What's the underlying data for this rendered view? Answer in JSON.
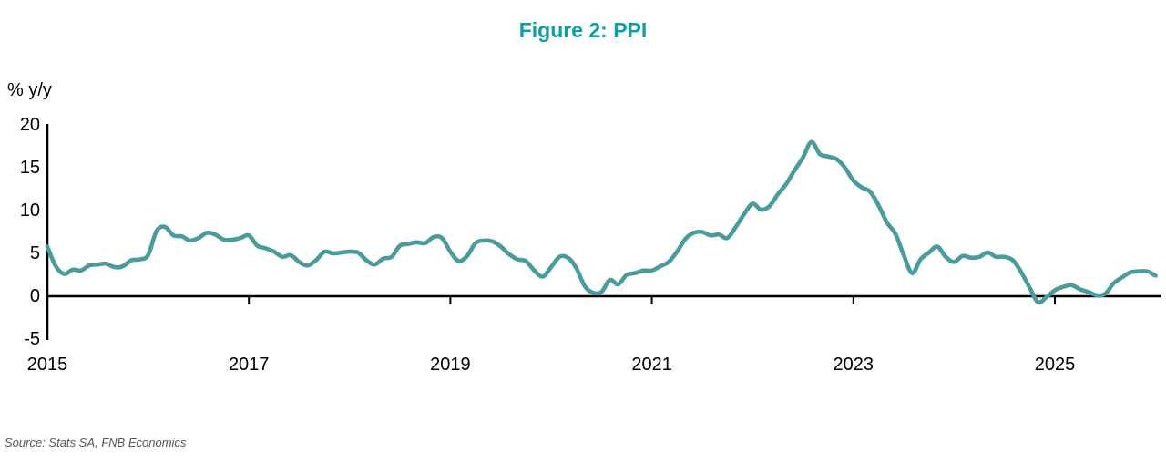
{
  "title": "Figure 2: PPI",
  "y_axis_unit": "% y/y",
  "source": "Source: Stats SA, FNB Economics",
  "colors": {
    "line": "#4a9b9c",
    "title": "#0b9fa7",
    "axis": "#000000",
    "source_text": "#575757"
  },
  "chart_data": {
    "type": "line",
    "title": "Figure 2: PPI",
    "ylabel": "% y/y",
    "series_name": "PPI % y/y",
    "frequency": "monthly",
    "start_month": "2014-12",
    "end_month": "2025-12",
    "ylim": [
      -5,
      20
    ],
    "grid": false,
    "legend": "none",
    "y_tick_values": [
      20,
      15,
      10,
      5,
      0,
      -5
    ],
    "y_tick_labels": [
      "20",
      "15",
      "10",
      "5",
      "0",
      "-5"
    ],
    "x_tick_labels": [
      "2015",
      "2017",
      "2019",
      "2021",
      "2023",
      "2025"
    ],
    "x_tick_month_indices": [
      0,
      24,
      48,
      72,
      96,
      120
    ],
    "values": [
      5.8,
      3.5,
      2.6,
      3.1,
      3.0,
      3.6,
      3.7,
      3.8,
      3.4,
      3.5,
      4.2,
      4.3,
      4.8,
      7.6,
      8.1,
      7.1,
      7.0,
      6.5,
      6.8,
      7.4,
      7.2,
      6.6,
      6.6,
      6.8,
      7.1,
      5.9,
      5.6,
      5.2,
      4.6,
      4.8,
      4.0,
      3.6,
      4.2,
      5.2,
      5.0,
      5.1,
      5.2,
      5.1,
      4.2,
      3.7,
      4.4,
      4.6,
      5.9,
      6.1,
      6.3,
      6.2,
      6.9,
      6.8,
      5.2,
      4.1,
      4.7,
      6.2,
      6.5,
      6.4,
      5.8,
      4.9,
      4.3,
      4.1,
      3.0,
      2.3,
      3.4,
      4.6,
      4.5,
      3.3,
      1.2,
      0.4,
      0.5,
      1.9,
      1.4,
      2.5,
      2.7,
      3.0,
      3.0,
      3.5,
      4.0,
      5.2,
      6.7,
      7.4,
      7.5,
      7.1,
      7.2,
      6.8,
      8.1,
      9.6,
      10.8,
      10.1,
      10.5,
      11.9,
      13.1,
      14.7,
      16.2,
      18.0,
      16.6,
      16.3,
      16.0,
      15.0,
      13.5,
      12.7,
      12.2,
      10.6,
      8.6,
      7.3,
      4.8,
      2.7,
      4.3,
      5.1,
      5.8,
      4.6,
      4.0,
      4.7,
      4.5,
      4.6,
      5.1,
      4.6,
      4.6,
      4.2,
      2.8,
      1.0,
      -0.7,
      -0.1,
      0.7,
      1.1,
      1.3,
      0.8,
      0.5,
      0.1,
      0.3,
      1.5,
      2.2,
      2.8,
      2.9,
      2.9,
      2.4
    ]
  }
}
